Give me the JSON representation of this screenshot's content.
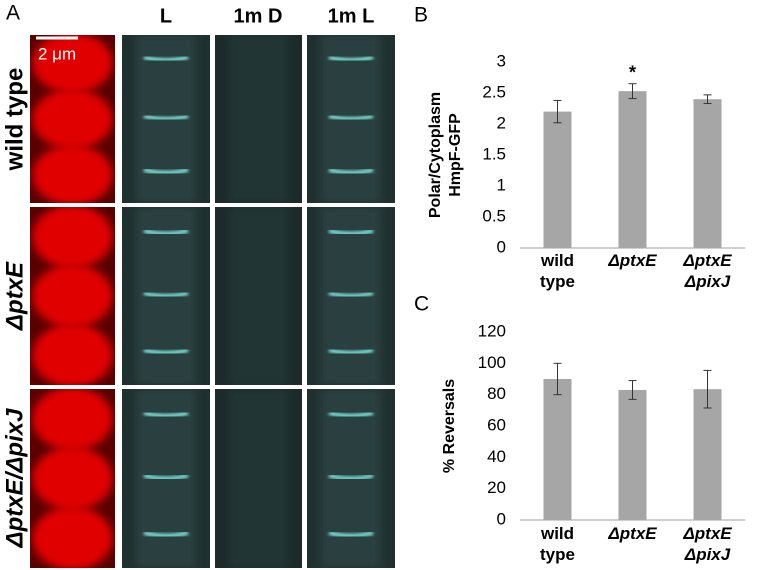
{
  "panel_labels": [
    "A",
    "B",
    "C"
  ],
  "microscopy": {
    "scale_bar": "2 μm",
    "columns": [
      "L",
      "1m D",
      "1m L"
    ],
    "rows": [
      "wild type",
      "ΔptxE",
      "ΔptxE/ΔpixJ"
    ]
  },
  "chart_data": [
    {
      "type": "bar",
      "y_label": "Polar/Cytoplasm HmpF-GFP",
      "categories": [
        "wild type",
        "ΔptxE",
        "ΔptxE ΔpixJ"
      ],
      "values": [
        2.2,
        2.53,
        2.4
      ],
      "errors": [
        0.18,
        0.12,
        0.07
      ],
      "color": "#a6a6a6",
      "annotations": [
        null,
        "*",
        null
      ],
      "ylim": [
        0,
        3
      ],
      "yticks": [
        0,
        0.5,
        1,
        1.5,
        2,
        2.5,
        3
      ],
      "grid": false
    },
    {
      "type": "bar",
      "y_label": "% Reversals",
      "categories": [
        "wild type",
        "ΔptxE",
        "ΔptxE ΔpixJ"
      ],
      "values": [
        90,
        83,
        83.5
      ],
      "errors": [
        10,
        6,
        12
      ],
      "color": "#a6a6a6",
      "ylim": [
        0,
        120
      ],
      "yticks": [
        0,
        20,
        40,
        60,
        80,
        100,
        120
      ],
      "grid": false
    }
  ]
}
